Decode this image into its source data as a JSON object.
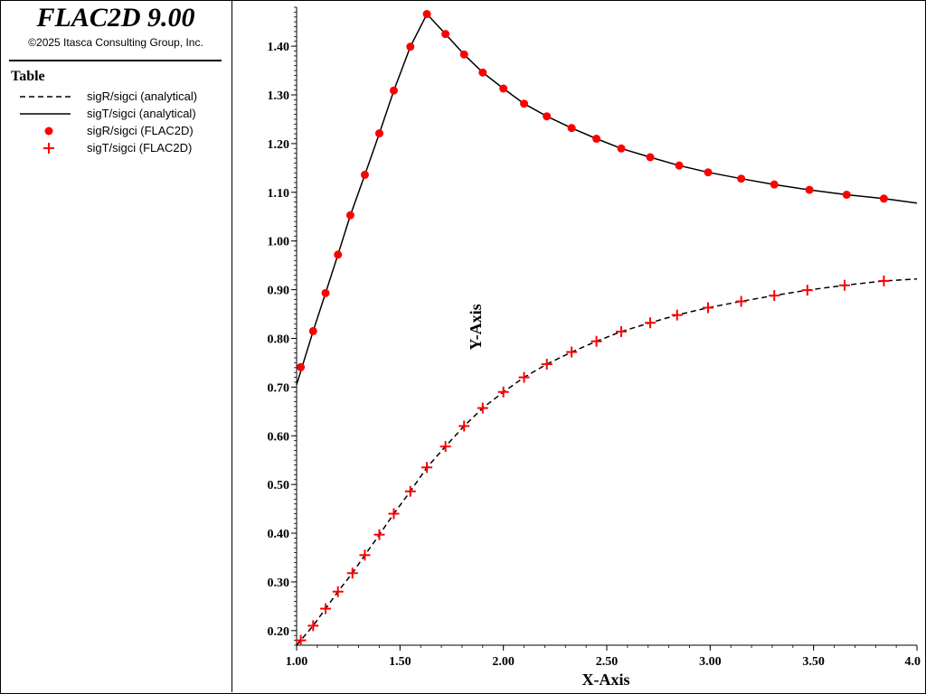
{
  "app": {
    "title": "FLAC2D 9.00",
    "copyright": "©2025 Itasca Consulting Group, Inc."
  },
  "legend": {
    "title": "Table",
    "items": [
      {
        "label": "sigR/sigci (analytical)",
        "style": "dashed-line",
        "color": "#000000"
      },
      {
        "label": "sigT/sigci (analytical)",
        "style": "solid-line",
        "color": "#000000"
      },
      {
        "label": "sigR/sigci (FLAC2D)",
        "style": "circle-marker",
        "color": "#ff0000"
      },
      {
        "label": "sigT/sigci (FLAC2D)",
        "style": "plus-marker",
        "color": "#ff0000"
      }
    ]
  },
  "chart_data": {
    "type": "line",
    "xlabel": "X-Axis",
    "ylabel": "Y-Axis",
    "xlim": [
      1.0,
      4.0
    ],
    "ylim": [
      0.17,
      1.48
    ],
    "xticks": [
      "1.00",
      "1.50",
      "2.00",
      "2.50",
      "3.00",
      "3.50",
      "4.0"
    ],
    "yticks": [
      "0.20",
      "0.30",
      "0.40",
      "0.50",
      "0.60",
      "0.70",
      "0.80",
      "0.90",
      "1.00",
      "1.10",
      "1.20",
      "1.30",
      "1.40"
    ],
    "grid": false,
    "series": [
      {
        "name": "sigR/sigci (analytical)",
        "style": "dashed-line",
        "color": "#000000",
        "x": [
          1.0,
          1.08,
          1.14,
          1.2,
          1.27,
          1.33,
          1.4,
          1.47,
          1.55,
          1.63,
          1.72,
          1.81,
          1.9,
          2.0,
          2.1,
          2.21,
          2.33,
          2.45,
          2.57,
          2.71,
          2.84,
          2.99,
          3.15,
          3.31,
          3.47,
          3.65,
          3.84,
          4.0
        ],
        "y": [
          0.17,
          0.21,
          0.245,
          0.28,
          0.318,
          0.355,
          0.397,
          0.44,
          0.486,
          0.535,
          0.578,
          0.62,
          0.657,
          0.69,
          0.72,
          0.747,
          0.772,
          0.794,
          0.814,
          0.832,
          0.848,
          0.863,
          0.876,
          0.888,
          0.899,
          0.909,
          0.918,
          0.922
        ]
      },
      {
        "name": "sigT/sigci (analytical)",
        "style": "solid-line",
        "color": "#000000",
        "x": [
          1.0,
          1.08,
          1.14,
          1.2,
          1.26,
          1.33,
          1.4,
          1.47,
          1.55,
          1.63,
          1.72,
          1.81,
          1.9,
          2.0,
          2.1,
          2.21,
          2.33,
          2.45,
          2.57,
          2.71,
          2.85,
          2.99,
          3.15,
          3.31,
          3.48,
          3.66,
          3.84,
          4.0
        ],
        "y": [
          0.705,
          0.815,
          0.893,
          0.972,
          1.053,
          1.136,
          1.221,
          1.309,
          1.399,
          1.466,
          1.425,
          1.383,
          1.346,
          1.313,
          1.282,
          1.256,
          1.232,
          1.21,
          1.19,
          1.172,
          1.155,
          1.141,
          1.128,
          1.116,
          1.105,
          1.095,
          1.087,
          1.078
        ]
      },
      {
        "name": "sigR/sigci (FLAC2D)",
        "style": "circle-marker",
        "color": "#ff0000",
        "x": [
          1.02,
          1.08,
          1.14,
          1.2,
          1.26,
          1.33,
          1.4,
          1.47,
          1.55,
          1.63,
          1.72,
          1.81,
          1.9,
          2.0,
          2.1,
          2.21,
          2.33,
          2.45,
          2.57,
          2.71,
          2.85,
          2.99,
          3.15,
          3.31,
          3.48,
          3.66,
          3.84
        ],
        "y": [
          0.741,
          0.815,
          0.893,
          0.972,
          1.053,
          1.136,
          1.221,
          1.309,
          1.399,
          1.466,
          1.425,
          1.383,
          1.346,
          1.313,
          1.282,
          1.256,
          1.232,
          1.21,
          1.19,
          1.172,
          1.155,
          1.141,
          1.128,
          1.116,
          1.105,
          1.095,
          1.087
        ]
      },
      {
        "name": "sigT/sigci (FLAC2D)",
        "style": "plus-marker",
        "color": "#ff0000",
        "x": [
          1.02,
          1.08,
          1.14,
          1.2,
          1.27,
          1.33,
          1.4,
          1.47,
          1.55,
          1.63,
          1.72,
          1.81,
          1.9,
          2.0,
          2.1,
          2.21,
          2.33,
          2.45,
          2.57,
          2.71,
          2.84,
          2.99,
          3.15,
          3.31,
          3.47,
          3.65,
          3.84
        ],
        "y": [
          0.18,
          0.21,
          0.245,
          0.28,
          0.318,
          0.355,
          0.397,
          0.44,
          0.486,
          0.535,
          0.578,
          0.62,
          0.657,
          0.69,
          0.72,
          0.747,
          0.772,
          0.794,
          0.814,
          0.832,
          0.848,
          0.863,
          0.876,
          0.888,
          0.899,
          0.909,
          0.918
        ]
      }
    ]
  }
}
